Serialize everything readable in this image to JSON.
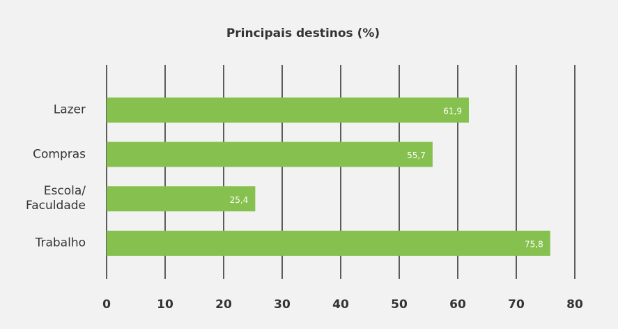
{
  "chart_data": {
    "type": "bar",
    "orientation": "horizontal",
    "title": "Principais destinos (%)",
    "categories": [
      "Lazer",
      "Compras",
      "Escola/ Faculdade",
      "Trabalho"
    ],
    "values": [
      61.9,
      55.7,
      25.4,
      75.8
    ],
    "value_labels": [
      "61,9",
      "55,7",
      "25,4",
      "75,8"
    ],
    "color": "#86c04f",
    "xlim": [
      0,
      80
    ],
    "xticks": [
      0,
      10,
      20,
      30,
      40,
      50,
      60,
      70,
      80
    ],
    "grid": true
  }
}
